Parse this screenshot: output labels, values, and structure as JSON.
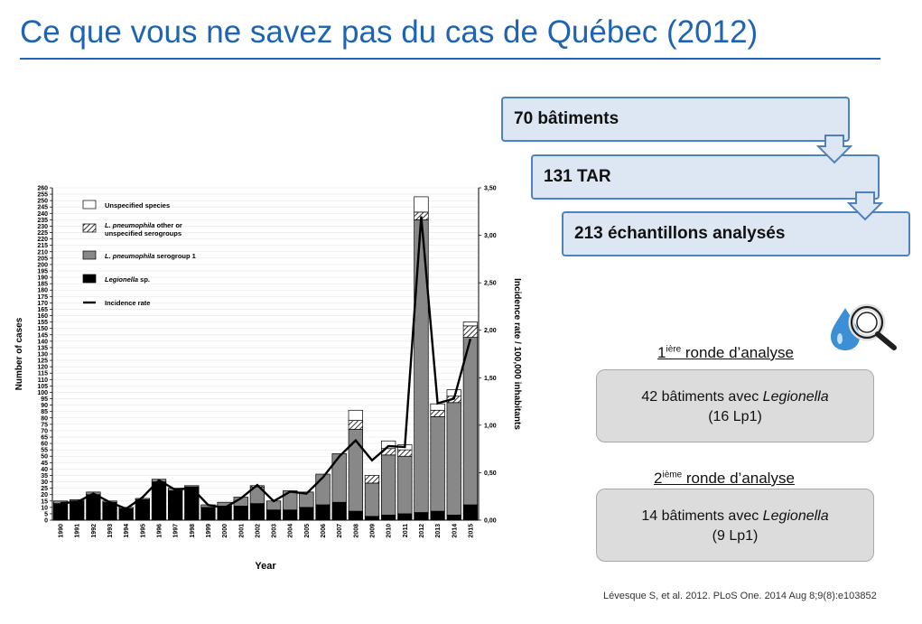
{
  "slide": {
    "title": "Ce que vous ne savez pas du cas de Québec (2012)",
    "flow": [
      {
        "label": "70 bâtiments"
      },
      {
        "label": "131 TAR"
      },
      {
        "label": "213 échantillons analysés"
      }
    ],
    "rounds": [
      {
        "ordinal": "1",
        "sup": "ière",
        "heading": " ronde d’analyse",
        "line1_prefix": "42 bâtiments avec ",
        "line1_italic": "Legionella",
        "line2": "(16 Lp1)"
      },
      {
        "ordinal": "2",
        "sup": "ième",
        "heading": " ronde d’analyse",
        "line1_prefix": "14 bâtiments avec ",
        "line1_italic": "Legionella",
        "line2": "(9 Lp1)"
      }
    ],
    "citation": "Lévesque S, et al. 2012. PLoS One. 2014 Aug 8;9(8):e103852",
    "colors": {
      "title": "#1f63b3",
      "box_fill": "#dde6f3",
      "box_border": "#4f81bd",
      "result_fill": "#dcdcdc",
      "drop": "#3b8fd4"
    },
    "icons": [
      "magnifier-water-drop-icon",
      "down-arrow-icon"
    ]
  },
  "chart_data": {
    "type": "bar",
    "stacked": true,
    "xlabel": "Year",
    "ylabel": "Number of cases",
    "y2label": "Incidence rate / 100,000 inhabitants",
    "ylim": [
      0,
      260
    ],
    "y2lim": [
      0,
      3.5
    ],
    "yticks": [
      "0",
      "5",
      "10",
      "15",
      "20",
      "25",
      "30",
      "35",
      "40",
      "45",
      "50",
      "55",
      "60",
      "65",
      "70",
      "75",
      "80",
      "85",
      "90",
      "95",
      "100",
      "105",
      "110",
      "115",
      "120",
      "125",
      "130",
      "135",
      "140",
      "145",
      "150",
      "155",
      "160",
      "165",
      "170",
      "175",
      "180",
      "185",
      "190",
      "195",
      "200",
      "205",
      "210",
      "215",
      "220",
      "225",
      "230",
      "235",
      "240",
      "245",
      "250",
      "255",
      "260"
    ],
    "y2ticks": [
      "0,00",
      "0,50",
      "1,00",
      "1,50",
      "2,00",
      "2,50",
      "3,00",
      "3,50"
    ],
    "categories": [
      "1990",
      "1991",
      "1992",
      "1993",
      "1994",
      "1995",
      "1996",
      "1997",
      "1998",
      "1999",
      "2000",
      "2001",
      "2002",
      "2003",
      "2004",
      "2005",
      "2006",
      "2007",
      "2008",
      "2009",
      "2010",
      "2011",
      "2012",
      "2013",
      "2014",
      "2015"
    ],
    "legend_position": "top-left",
    "series": [
      {
        "name": "Legionella sp.",
        "fill": "#000000",
        "values": [
          13,
          15,
          20,
          14,
          9,
          16,
          30,
          23,
          26,
          10,
          11,
          11,
          13,
          8,
          8,
          10,
          12,
          14,
          7,
          3,
          4,
          5,
          6,
          7,
          4,
          12
        ]
      },
      {
        "name": "L. pneumophila serogroup 1",
        "fill": "#888888",
        "values": [
          2,
          1,
          2,
          1,
          1,
          1,
          2,
          2,
          1,
          2,
          3,
          7,
          13,
          7,
          15,
          12,
          24,
          38,
          64,
          26,
          47,
          45,
          229,
          74,
          88,
          131
        ]
      },
      {
        "name": "L. pneumophila other or unspecified serogroups",
        "fill": "hatch",
        "values": [
          0,
          0,
          0,
          0,
          0,
          0,
          0,
          0,
          0,
          0,
          0,
          0,
          1,
          0,
          0,
          0,
          0,
          0,
          7,
          6,
          5,
          5,
          6,
          5,
          5,
          9
        ]
      },
      {
        "name": "Unspecified species",
        "fill": "#ffffff",
        "values": [
          0,
          0,
          0,
          0,
          0,
          0,
          0,
          0,
          0,
          0,
          0,
          0,
          0,
          0,
          0,
          0,
          0,
          0,
          8,
          0,
          6,
          4,
          12,
          5,
          5,
          3
        ]
      }
    ],
    "line": {
      "name": "Incidence rate",
      "axis": "y2",
      "values": [
        0.18,
        0.19,
        0.28,
        0.19,
        0.12,
        0.24,
        0.42,
        0.32,
        0.34,
        0.16,
        0.13,
        0.23,
        0.37,
        0.2,
        0.3,
        0.28,
        0.45,
        0.67,
        0.84,
        0.63,
        0.78,
        0.77,
        3.2,
        1.23,
        1.28,
        1.91
      ]
    }
  }
}
